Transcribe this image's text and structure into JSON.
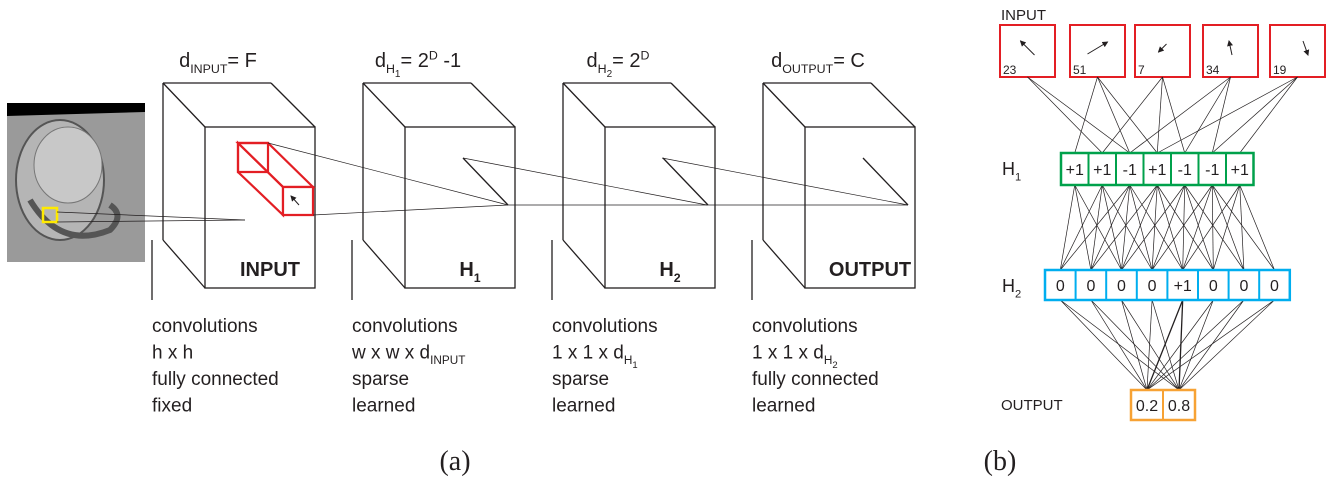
{
  "panel_a": {
    "caption": "(a)",
    "layers": [
      {
        "dimension": [
          {
            "normal": "d"
          },
          {
            "sub": "INPUT"
          },
          {
            "normal": "= F"
          }
        ],
        "label": [
          {
            "normal": "INPUT"
          }
        ],
        "description": [
          [
            {
              "normal": "convolutions"
            }
          ],
          [
            {
              "normal": "h x h"
            }
          ],
          [
            {
              "normal": "fully connected"
            }
          ],
          [
            {
              "normal": "fixed"
            }
          ]
        ]
      },
      {
        "dimension": [
          {
            "normal": "d"
          },
          {
            "sub": "H"
          },
          {
            "sub2": "1"
          },
          {
            "normal": "= 2"
          },
          {
            "sup": "D"
          },
          {
            "normal": " -1"
          }
        ],
        "label": [
          {
            "normal": "H"
          },
          {
            "sub": "1"
          }
        ],
        "description": [
          [
            {
              "normal": "convolutions"
            }
          ],
          [
            {
              "normal": "w x w x d"
            },
            {
              "sub": "INPUT"
            }
          ],
          [
            {
              "normal": "sparse"
            }
          ],
          [
            {
              "normal": "learned"
            }
          ]
        ]
      },
      {
        "dimension": [
          {
            "normal": "d"
          },
          {
            "sub": "H"
          },
          {
            "sub2": "2"
          },
          {
            "normal": "= 2"
          },
          {
            "sup": "D"
          }
        ],
        "label": [
          {
            "normal": "H"
          },
          {
            "sub": "2"
          }
        ],
        "description": [
          [
            {
              "normal": "convolutions"
            }
          ],
          [
            {
              "normal": "1 x 1 x d"
            },
            {
              "sub": "H"
            },
            {
              "sub2": "1"
            }
          ],
          [
            {
              "normal": "sparse"
            }
          ],
          [
            {
              "normal": "learned"
            }
          ]
        ]
      },
      {
        "dimension": [
          {
            "normal": "d"
          },
          {
            "sub": "OUTPUT"
          },
          {
            "normal": "= C"
          }
        ],
        "label": [
          {
            "normal": "OUTPUT"
          }
        ],
        "description": [
          [
            {
              "normal": "convolutions"
            }
          ],
          [
            {
              "normal": "1 x 1 x d"
            },
            {
              "sub": "H"
            },
            {
              "sub2": "2"
            }
          ],
          [
            {
              "normal": "fully connected"
            }
          ],
          [
            {
              "normal": "learned"
            }
          ]
        ]
      }
    ]
  },
  "panel_b": {
    "caption": "(b)",
    "input": {
      "label": "INPUT",
      "values": [
        "23",
        "51",
        "7",
        "34",
        "19"
      ]
    },
    "h1": {
      "label": [
        {
          "normal": "H"
        },
        {
          "sub": "1"
        }
      ],
      "cells": [
        "+1",
        "+1",
        "-1",
        "+1",
        "-1",
        "-1",
        "+1"
      ]
    },
    "h2": {
      "label": [
        {
          "normal": "H"
        },
        {
          "sub": "2"
        }
      ],
      "cells": [
        "0",
        "0",
        "0",
        "0",
        "+1",
        "0",
        "0",
        "0"
      ]
    },
    "output": {
      "label": "OUTPUT",
      "cells": [
        "0.2",
        "0.8"
      ]
    }
  }
}
